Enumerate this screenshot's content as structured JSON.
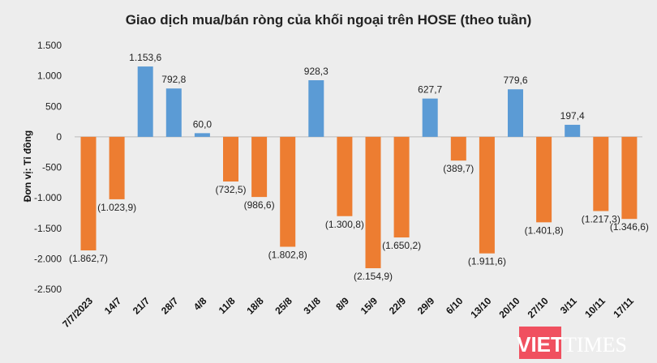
{
  "chart_data": {
    "type": "bar",
    "title": "Giao dịch mua/bán ròng của khối ngoại trên HOSE (theo tuần)",
    "ylabel": "Đơn vị: Tỉ đồng",
    "xlabel": "",
    "ylim": [
      -2500,
      1500
    ],
    "yticks": [
      1500,
      1000,
      500,
      0,
      -500,
      -1000,
      -1500,
      -2000,
      -2500
    ],
    "ytick_labels": [
      "1.500",
      "1.000",
      "500",
      "0",
      "-500",
      "-1.000",
      "-1.500",
      "-2.000",
      "-2.500"
    ],
    "grid": false,
    "categories": [
      "7/7/2023",
      "14/7",
      "21/7",
      "28/7",
      "4/8",
      "11/8",
      "18/8",
      "25/8",
      "31/8",
      "8/9",
      "15/9",
      "22/9",
      "29/9",
      "6/10",
      "13/10",
      "20/10",
      "27/10",
      "3/11",
      "10/11",
      "17/11"
    ],
    "values": [
      -1862.7,
      -1023.9,
      1153.6,
      792.8,
      60.0,
      -732.5,
      -986.6,
      -1802.8,
      928.3,
      -1300.8,
      -2154.9,
      -1650.2,
      627.7,
      -389.7,
      -1911.6,
      779.6,
      -1401.8,
      197.4,
      -1217.3,
      -1346.6
    ],
    "data_labels": [
      "(1.862,7)",
      "(1.023,9)",
      "1.153,6",
      "792,8",
      "60,0",
      "(732,5)",
      "(986,6)",
      "(1.802,8)",
      "928,3",
      "(1.300,8)",
      "(2.154,9)",
      "(1.650,2)",
      "627,7",
      "(389,7)",
      "(1.911,6)",
      "779,6",
      "(1.401,8)",
      "197,4",
      "(1.217,3)",
      "(1.346,6)"
    ],
    "colors": {
      "positive": "#5b9bd5",
      "negative": "#ed7d31"
    }
  },
  "watermark": {
    "text_left": "VIET",
    "text_right": "TIMES",
    "color": "#f0505f"
  }
}
